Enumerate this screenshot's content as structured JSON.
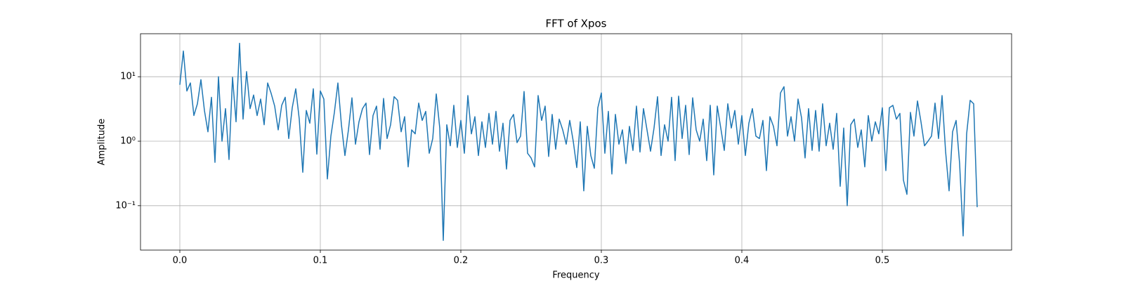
{
  "chart_data": {
    "type": "line",
    "title": "FFT of Xpos",
    "x_label": "Frequency",
    "y_label": "Amplitude",
    "log_y": true,
    "grid": true,
    "xlim": [
      -0.028,
      0.592
    ],
    "ylim": [
      0.0205,
      46.4
    ],
    "xticks": [
      {
        "value": 0,
        "label": "0.0"
      },
      0.1,
      0.2,
      0.3,
      0.4,
      0.5
    ],
    "yticks": [
      {
        "value": 0.1,
        "label": "10⁻¹"
      },
      {
        "value": 1,
        "label": "10⁰"
      },
      {
        "value": 10,
        "label": "10¹"
      }
    ],
    "series": [
      {
        "color": "#1f77b4",
        "x": [
          0,
          0.0025,
          0.005,
          0.0075,
          0.01,
          0.0125,
          0.015,
          0.0175,
          0.02,
          0.0225,
          0.025,
          0.0275,
          0.03,
          0.0325,
          0.035,
          0.0375,
          0.04,
          0.0425,
          0.045,
          0.0475,
          0.05,
          0.0525,
          0.055,
          0.0575,
          0.06,
          0.0625,
          0.065,
          0.0675,
          0.07,
          0.0725,
          0.075,
          0.0775,
          0.08,
          0.0825,
          0.085,
          0.0875,
          0.09,
          0.0925,
          0.095,
          0.0975,
          0.1,
          0.1025,
          0.105,
          0.1075,
          0.11,
          0.1125,
          0.115,
          0.1175,
          0.12,
          0.1225,
          0.125,
          0.1275,
          0.13,
          0.1325,
          0.135,
          0.1375,
          0.14,
          0.1425,
          0.145,
          0.1475,
          0.15,
          0.1525,
          0.155,
          0.1575,
          0.16,
          0.1625,
          0.165,
          0.1675,
          0.17,
          0.1725,
          0.175,
          0.1775,
          0.18,
          0.1825,
          0.185,
          0.1875,
          0.19,
          0.1925,
          0.195,
          0.1975,
          0.2,
          0.2025,
          0.205,
          0.2075,
          0.21,
          0.2125,
          0.215,
          0.2175,
          0.22,
          0.2225,
          0.225,
          0.2275,
          0.23,
          0.2325,
          0.235,
          0.2375,
          0.24,
          0.2425,
          0.245,
          0.2475,
          0.25,
          0.2525,
          0.255,
          0.2575,
          0.26,
          0.2625,
          0.265,
          0.2675,
          0.27,
          0.2725,
          0.275,
          0.2775,
          0.28,
          0.2825,
          0.285,
          0.2875,
          0.29,
          0.2925,
          0.295,
          0.2975,
          0.3,
          0.3025,
          0.305,
          0.3075,
          0.31,
          0.3125,
          0.315,
          0.3175,
          0.32,
          0.3225,
          0.325,
          0.3275,
          0.33,
          0.3325,
          0.335,
          0.3375,
          0.34,
          0.3425,
          0.345,
          0.3475,
          0.35,
          0.3525,
          0.355,
          0.3575,
          0.36,
          0.3625,
          0.365,
          0.3675,
          0.37,
          0.3725,
          0.375,
          0.3775,
          0.38,
          0.3825,
          0.385,
          0.3875,
          0.39,
          0.3925,
          0.395,
          0.3975,
          0.4,
          0.4025,
          0.405,
          0.4075,
          0.41,
          0.4125,
          0.415,
          0.4175,
          0.42,
          0.4225,
          0.425,
          0.4275,
          0.43,
          0.4325,
          0.435,
          0.4375,
          0.44,
          0.4425,
          0.445,
          0.4475,
          0.45,
          0.4525,
          0.455,
          0.4575,
          0.46,
          0.4625,
          0.465,
          0.4675,
          0.47,
          0.4725,
          0.475,
          0.4775,
          0.48,
          0.4825,
          0.485,
          0.4875,
          0.49,
          0.4925,
          0.495,
          0.4975,
          0.5,
          0.5025,
          0.505,
          0.5075,
          0.51,
          0.5125,
          0.515,
          0.5175,
          0.52,
          0.5225,
          0.525,
          0.5275,
          0.53,
          0.5325,
          0.535,
          0.5375,
          0.54,
          0.5425,
          0.545,
          0.5475,
          0.55,
          0.5525,
          0.555,
          0.5575,
          0.56,
          0.5625,
          0.565,
          0.5675
        ],
        "values": [
          7.5,
          25,
          6,
          8,
          2.5,
          3.8,
          9,
          3,
          1.4,
          4.8,
          0.47,
          10,
          1.0,
          3.2,
          0.52,
          9.8,
          2.0,
          33,
          2.2,
          12,
          3.2,
          5.2,
          2.5,
          4.5,
          1.8,
          8,
          5.5,
          3.5,
          1.5,
          3.6,
          4.8,
          1.1,
          3.3,
          6.5,
          2.2,
          0.33,
          3,
          1.9,
          6.5,
          0.63,
          6,
          4.5,
          0.26,
          1.2,
          2.8,
          8,
          1.8,
          0.6,
          1.5,
          4.7,
          0.9,
          2,
          3.2,
          3.9,
          0.62,
          2.5,
          3.5,
          0.75,
          4.6,
          1.1,
          1.8,
          4.9,
          4.3,
          1.4,
          2.4,
          0.4,
          1.5,
          1.3,
          3.9,
          2.1,
          2.9,
          0.65,
          1.1,
          5.4,
          1.6,
          0.029,
          1.8,
          0.85,
          3.6,
          0.8,
          2.1,
          0.65,
          5.1,
          1.3,
          2.4,
          0.6,
          2.0,
          0.8,
          2.7,
          0.9,
          2.9,
          0.7,
          1.9,
          0.37,
          2.1,
          2.6,
          0.95,
          1.2,
          5.9,
          0.65,
          0.55,
          0.4,
          5.1,
          2.1,
          3.5,
          0.58,
          2.6,
          0.75,
          2.2,
          1.5,
          0.9,
          2.1,
          1.0,
          0.39,
          2.0,
          0.17,
          1.7,
          0.6,
          0.38,
          3.3,
          5.6,
          0.65,
          2.9,
          0.31,
          2.6,
          0.9,
          1.5,
          0.45,
          1.7,
          0.72,
          3.5,
          0.68,
          3.2,
          1.5,
          0.7,
          1.6,
          4.9,
          0.6,
          1.8,
          1.0,
          4.8,
          0.5,
          5.0,
          1.1,
          3.6,
          0.62,
          4.7,
          1.5,
          1.0,
          2.2,
          0.5,
          3.6,
          0.3,
          3.5,
          1.6,
          0.72,
          3.8,
          1.6,
          3.0,
          0.9,
          2.5,
          0.6,
          1.9,
          3.2,
          1.2,
          1.1,
          2.1,
          0.35,
          2.4,
          1.7,
          0.85,
          5.6,
          7,
          1.2,
          2.4,
          1.0,
          4.5,
          2.3,
          0.55,
          3.2,
          0.72,
          3.0,
          0.7,
          3.8,
          0.85,
          1.9,
          0.75,
          2.7,
          0.2,
          1.6,
          0.1,
          1.8,
          2.2,
          0.8,
          1.5,
          0.4,
          2.5,
          1.0,
          2.0,
          1.3,
          3.3,
          0.35,
          3.3,
          3.6,
          2.2,
          2.7,
          0.25,
          0.15,
          2.8,
          1.2,
          4.2,
          2.0,
          0.85,
          1.0,
          1.2,
          3.9,
          1.1,
          5.1,
          0.7,
          0.17,
          1.4,
          2.1,
          0.45,
          0.034,
          1.3,
          4.3,
          3.8,
          0.095
        ]
      }
    ]
  }
}
